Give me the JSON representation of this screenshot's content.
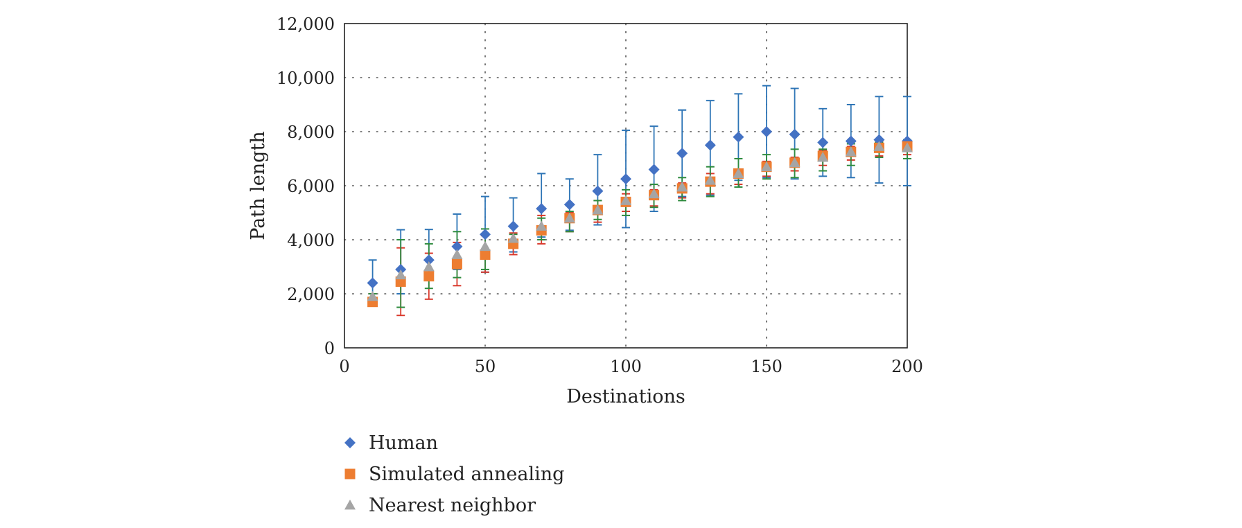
{
  "chart_data": {
    "type": "scatter",
    "title": "",
    "xlabel": "Destinations",
    "ylabel": "Path length",
    "xlim": [
      0,
      200
    ],
    "ylim": [
      0,
      12000
    ],
    "xticks": [
      0,
      50,
      100,
      150,
      200
    ],
    "yticks": [
      0,
      2000,
      4000,
      6000,
      8000,
      10000,
      12000
    ],
    "xtick_labels": [
      "0",
      "50",
      "100",
      "150",
      "200"
    ],
    "ytick_labels": [
      "0",
      "2,000",
      "4,000",
      "6,000",
      "8,000",
      "10,000",
      "12,000"
    ],
    "grid": "dotted",
    "legend_position": "bottom-left",
    "x": [
      10,
      20,
      30,
      40,
      50,
      60,
      70,
      80,
      90,
      100,
      110,
      120,
      130,
      140,
      150,
      160,
      170,
      180,
      190,
      200
    ],
    "series": [
      {
        "name": "Human",
        "marker": "diamond",
        "color": "#4472C4",
        "error_color": "#2E75B6",
        "values": [
          2400,
          2900,
          3250,
          3750,
          4200,
          4500,
          5150,
          5300,
          5800,
          6250,
          6600,
          7200,
          7500,
          7800,
          8000,
          7900,
          7600,
          7650,
          7700,
          7650
        ],
        "err_high": [
          3250,
          4370,
          4380,
          4950,
          5600,
          5550,
          6450,
          6250,
          7150,
          8050,
          8200,
          8800,
          9150,
          9400,
          9700,
          9600,
          8850,
          9000,
          9300,
          9300
        ],
        "err_low": [
          2000,
          2000,
          2700,
          2900,
          2800,
          3550,
          4100,
          4350,
          4550,
          4450,
          5050,
          5600,
          5650,
          6200,
          6300,
          6250,
          6350,
          6300,
          6100,
          6000
        ]
      },
      {
        "name": "Simulated annealing",
        "marker": "square",
        "color": "#ED7D31",
        "error_color": "#D9392C",
        "values": [
          1700,
          2450,
          2650,
          3100,
          3450,
          3850,
          4350,
          4800,
          5100,
          5400,
          5650,
          5900,
          6150,
          6450,
          6700,
          6850,
          7100,
          7250,
          7400,
          7450
        ],
        "err_high": [
          2000,
          3700,
          3500,
          3900,
          4150,
          4250,
          4900,
          5000,
          5450,
          5700,
          5850,
          6100,
          6450,
          6600,
          6900,
          7050,
          7300,
          7450,
          7650,
          7650
        ],
        "err_low": [
          1600,
          1200,
          1800,
          2300,
          2800,
          3450,
          3850,
          4300,
          4650,
          5050,
          5250,
          5550,
          5700,
          6050,
          6350,
          6550,
          6750,
          6950,
          7100,
          7150
        ]
      },
      {
        "name": "Nearest neighbor",
        "marker": "triangle",
        "color": "#A5A5A5",
        "error_color": "#2E8B3E",
        "values": [
          1900,
          2700,
          3000,
          3450,
          3750,
          4050,
          4500,
          4800,
          5100,
          5450,
          5700,
          5950,
          6200,
          6450,
          6700,
          6850,
          7050,
          7250,
          7450,
          7400
        ],
        "err_high": [
          2000,
          4000,
          3850,
          4300,
          4400,
          4200,
          4800,
          5050,
          5450,
          5850,
          6050,
          6300,
          6700,
          7000,
          7150,
          7350,
          7350,
          7550,
          7600,
          7700
        ],
        "err_low": [
          1800,
          1500,
          2200,
          2600,
          2900,
          3700,
          4000,
          4300,
          4750,
          4900,
          5200,
          5450,
          5600,
          5950,
          6250,
          6300,
          6550,
          6750,
          7050,
          7000
        ]
      }
    ]
  }
}
